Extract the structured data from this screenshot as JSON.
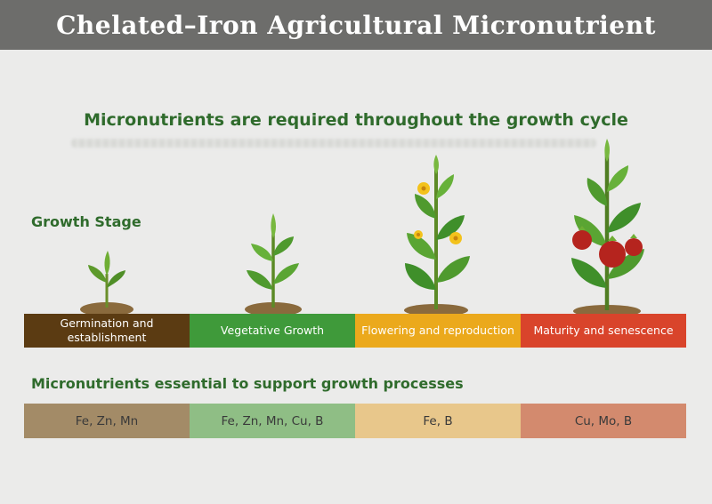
{
  "header": {
    "title": "Chelated–Iron Agricultural Micronutrient"
  },
  "infographic": {
    "subtitle": "Micronutrients are required throughout the growth cycle",
    "growth_stage_label": "Growth Stage",
    "stages": [
      {
        "label": "Germination and establishment",
        "color": "#5b3b12"
      },
      {
        "label": "Vegetative Growth",
        "color": "#3f9a3a"
      },
      {
        "label": "Flowering and reproduction",
        "color": "#eba91c"
      },
      {
        "label": "Maturity and senescence",
        "color": "#d9442b"
      }
    ],
    "micronutrients_label": "Micronutrients essential to support growth processes",
    "micronutrients": [
      {
        "label": "Fe, Zn, Mn",
        "color": "#a38b67"
      },
      {
        "label": "Fe, Zn, Mn, Cu, B",
        "color": "#8fbe85"
      },
      {
        "label": "Fe, B",
        "color": "#e8c78b"
      },
      {
        "label": "Cu, Mo, B",
        "color": "#d38a6e"
      }
    ],
    "colors": {
      "title_bar": "#6d6d6b",
      "heading_green": "#2f6b2c",
      "leaf_green": "#4f9a2e",
      "fruit_red": "#b5241e",
      "flower_yellow": "#f3c21c"
    }
  }
}
